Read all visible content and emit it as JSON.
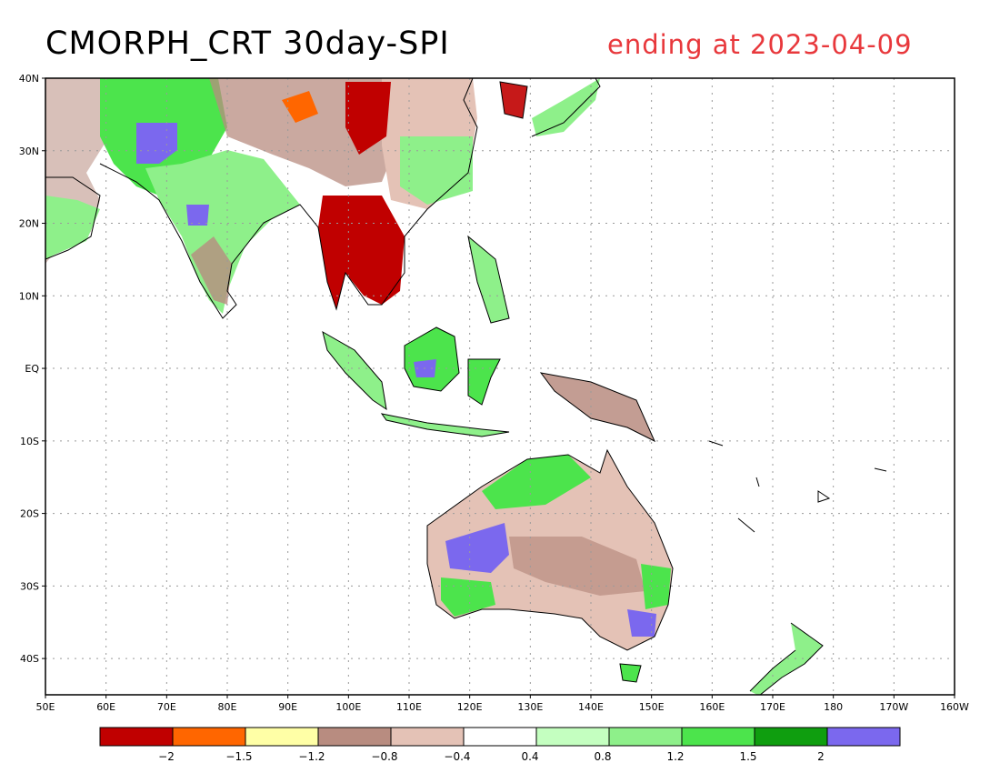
{
  "title": "CMORPH_CRT 30day-SPI",
  "subtitle": "ending at 2023-04-09",
  "map": {
    "lon_range": [
      50,
      200
    ],
    "lat_range": [
      -45,
      40
    ],
    "lat_ticks": [
      {
        "value": 40,
        "label": "40N"
      },
      {
        "value": 30,
        "label": "30N"
      },
      {
        "value": 20,
        "label": "20N"
      },
      {
        "value": 10,
        "label": "10N"
      },
      {
        "value": 0,
        "label": "EQ"
      },
      {
        "value": -10,
        "label": "10S"
      },
      {
        "value": -20,
        "label": "20S"
      },
      {
        "value": -30,
        "label": "30S"
      },
      {
        "value": -40,
        "label": "40S"
      }
    ],
    "lon_ticks": [
      {
        "value": 50,
        "label": "50E"
      },
      {
        "value": 60,
        "label": "60E"
      },
      {
        "value": 70,
        "label": "70E"
      },
      {
        "value": 80,
        "label": "80E"
      },
      {
        "value": 90,
        "label": "90E"
      },
      {
        "value": 100,
        "label": "100E"
      },
      {
        "value": 110,
        "label": "110E"
      },
      {
        "value": 120,
        "label": "120E"
      },
      {
        "value": 130,
        "label": "130E"
      },
      {
        "value": 140,
        "label": "140E"
      },
      {
        "value": 150,
        "label": "150E"
      },
      {
        "value": 160,
        "label": "160E"
      },
      {
        "value": 170,
        "label": "170E"
      },
      {
        "value": 180,
        "label": "180"
      },
      {
        "value": 190,
        "label": "170W"
      },
      {
        "value": 200,
        "label": "160W"
      }
    ]
  },
  "colorbar": {
    "colors": [
      "#c00000",
      "#ff6600",
      "#ffffa6",
      "#b88c80",
      "#e4c2b6",
      "#ffffff",
      "#c4ffc0",
      "#8ef08a",
      "#4ce44c",
      "#0f9e0f",
      "#7b68ee"
    ],
    "labels": [
      "-2",
      "-1.5",
      "-1.2",
      "-0.8",
      "-0.4",
      "0.4",
      "0.8",
      "1.2",
      "1.5",
      "2"
    ]
  }
}
